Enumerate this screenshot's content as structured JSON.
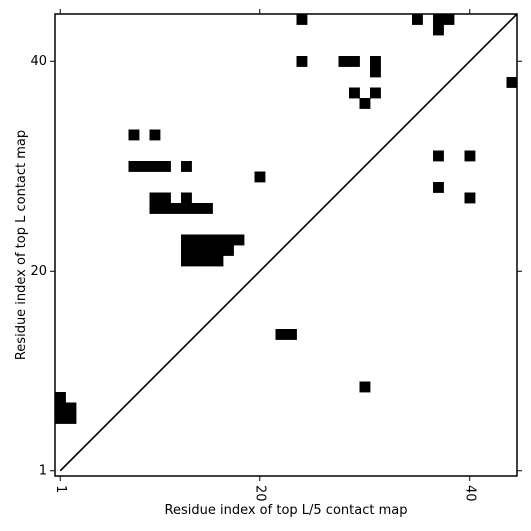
{
  "chart_data": {
    "type": "heatmap",
    "title": "",
    "xlabel": "Residue index of top L/5 contact map",
    "ylabel": "Residue index of top L contact map",
    "xlim": [
      0.5,
      44.5
    ],
    "ylim": [
      0.5,
      44.5
    ],
    "xticks": [
      1,
      20,
      40
    ],
    "yticks": [
      1,
      20,
      40
    ],
    "x_tick_labels": [
      "1",
      "20",
      "40"
    ],
    "y_tick_labels": [
      "1",
      "20",
      "40"
    ],
    "x_tick_rotation_deg": 90,
    "diagonal_line": [
      [
        1,
        1
      ],
      [
        44.5,
        44.5
      ]
    ],
    "cell_color": "#000000",
    "background_color": "#ffffff",
    "cells": [
      [
        1,
        8
      ],
      [
        1,
        7
      ],
      [
        2,
        7
      ],
      [
        1,
        6
      ],
      [
        2,
        6
      ],
      [
        22,
        14
      ],
      [
        23,
        14
      ],
      [
        30,
        9
      ],
      [
        8,
        33
      ],
      [
        10,
        33
      ],
      [
        8,
        30
      ],
      [
        9,
        30
      ],
      [
        10,
        30
      ],
      [
        11,
        30
      ],
      [
        13,
        30
      ],
      [
        20,
        29
      ],
      [
        10,
        27
      ],
      [
        11,
        27
      ],
      [
        13,
        27
      ],
      [
        10,
        26
      ],
      [
        11,
        26
      ],
      [
        12,
        26
      ],
      [
        13,
        26
      ],
      [
        14,
        26
      ],
      [
        15,
        26
      ],
      [
        13,
        23
      ],
      [
        14,
        23
      ],
      [
        15,
        23
      ],
      [
        16,
        23
      ],
      [
        17,
        23
      ],
      [
        18,
        23
      ],
      [
        13,
        22
      ],
      [
        14,
        22
      ],
      [
        15,
        22
      ],
      [
        16,
        22
      ],
      [
        17,
        22
      ],
      [
        13,
        21
      ],
      [
        14,
        21
      ],
      [
        15,
        21
      ],
      [
        16,
        21
      ],
      [
        24,
        44
      ],
      [
        35,
        44
      ],
      [
        37,
        44
      ],
      [
        38,
        44
      ],
      [
        37,
        43
      ],
      [
        24,
        40
      ],
      [
        28,
        40
      ],
      [
        29,
        40
      ],
      [
        31,
        40
      ],
      [
        31,
        39
      ],
      [
        44,
        38
      ],
      [
        29,
        37
      ],
      [
        31,
        37
      ],
      [
        30,
        36
      ],
      [
        37,
        31
      ],
      [
        40,
        31
      ],
      [
        37,
        28
      ],
      [
        40,
        27
      ]
    ]
  }
}
